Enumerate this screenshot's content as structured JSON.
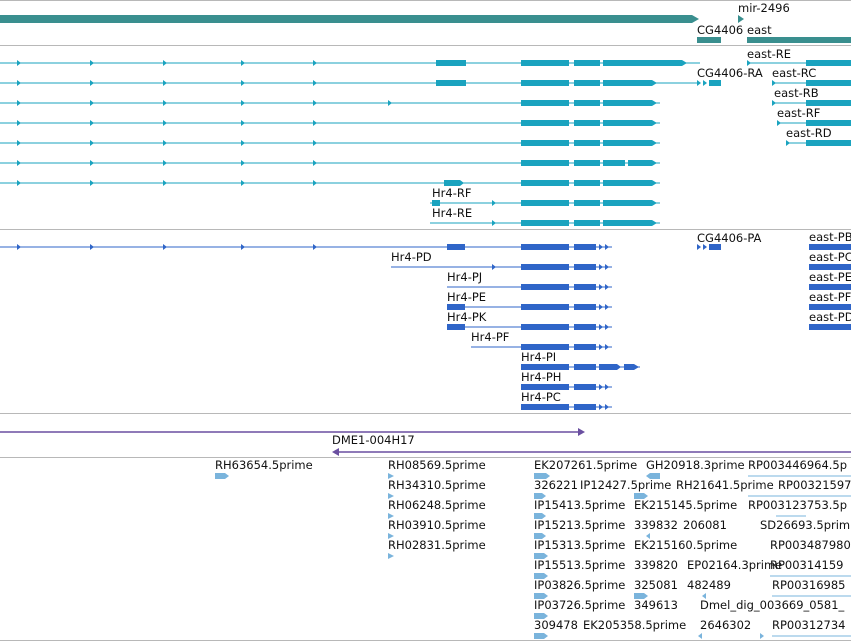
{
  "colors": {
    "gene_track": "#3a8f8f",
    "transcript": "#1aa3bf",
    "protein": "#2f65c8",
    "clone": "#6a4fa0",
    "est": "#7ab4dc",
    "separator": "#b8b8b8"
  },
  "gene_track": {
    "labels": [
      "mir-2496",
      "CG4406",
      "east"
    ]
  },
  "transcript_track": {
    "labels": [
      "east-RE",
      "CG4406-RA",
      "east-RC",
      "east-RB",
      "east-RF",
      "east-RD",
      "Hr4-RF",
      "Hr4-RE"
    ]
  },
  "protein_track": {
    "labels": [
      "CG4406-PA",
      "east-PB",
      "Hr4-PD",
      "east-PC",
      "Hr4-PJ",
      "east-PE",
      "Hr4-PE",
      "east-PF",
      "Hr4-PK",
      "east-PD",
      "Hr4-PF",
      "Hr4-PI",
      "Hr4-PH",
      "Hr4-PC"
    ]
  },
  "clone_track": {
    "labels": [
      "DME1-004H17"
    ]
  },
  "est_track": {
    "labels": [
      "RH63654.5prime",
      "RH08569.5prime",
      "RH34310.5prime",
      "RH06248.5prime",
      "RH03910.5prime",
      "RH02831.5prime",
      "EK207261.5prime",
      "GH20918.3prime",
      "RP003446964.5p",
      "326221",
      "IP12427.5prime",
      "RH21641.5prime",
      "RP00321597",
      "IP15413.5prime",
      "EK215145.5prime",
      "RP003123753.5p",
      "IP15213.5prime",
      "339832",
      "206081",
      "SD26693.5prim",
      "IP15313.5prime",
      "EK215160.5prime",
      "RP003487980",
      "IP15513.5prime",
      "339820",
      "EP02164.3prime",
      "RP00314159",
      "IP03826.5prime",
      "325081",
      "482489",
      "RP00316985",
      "IP03726.5prime",
      "349613",
      "Dmel_dig_003669_0581_",
      "309478",
      "EK205358.5prime",
      "2646302",
      "RP00312734"
    ]
  }
}
